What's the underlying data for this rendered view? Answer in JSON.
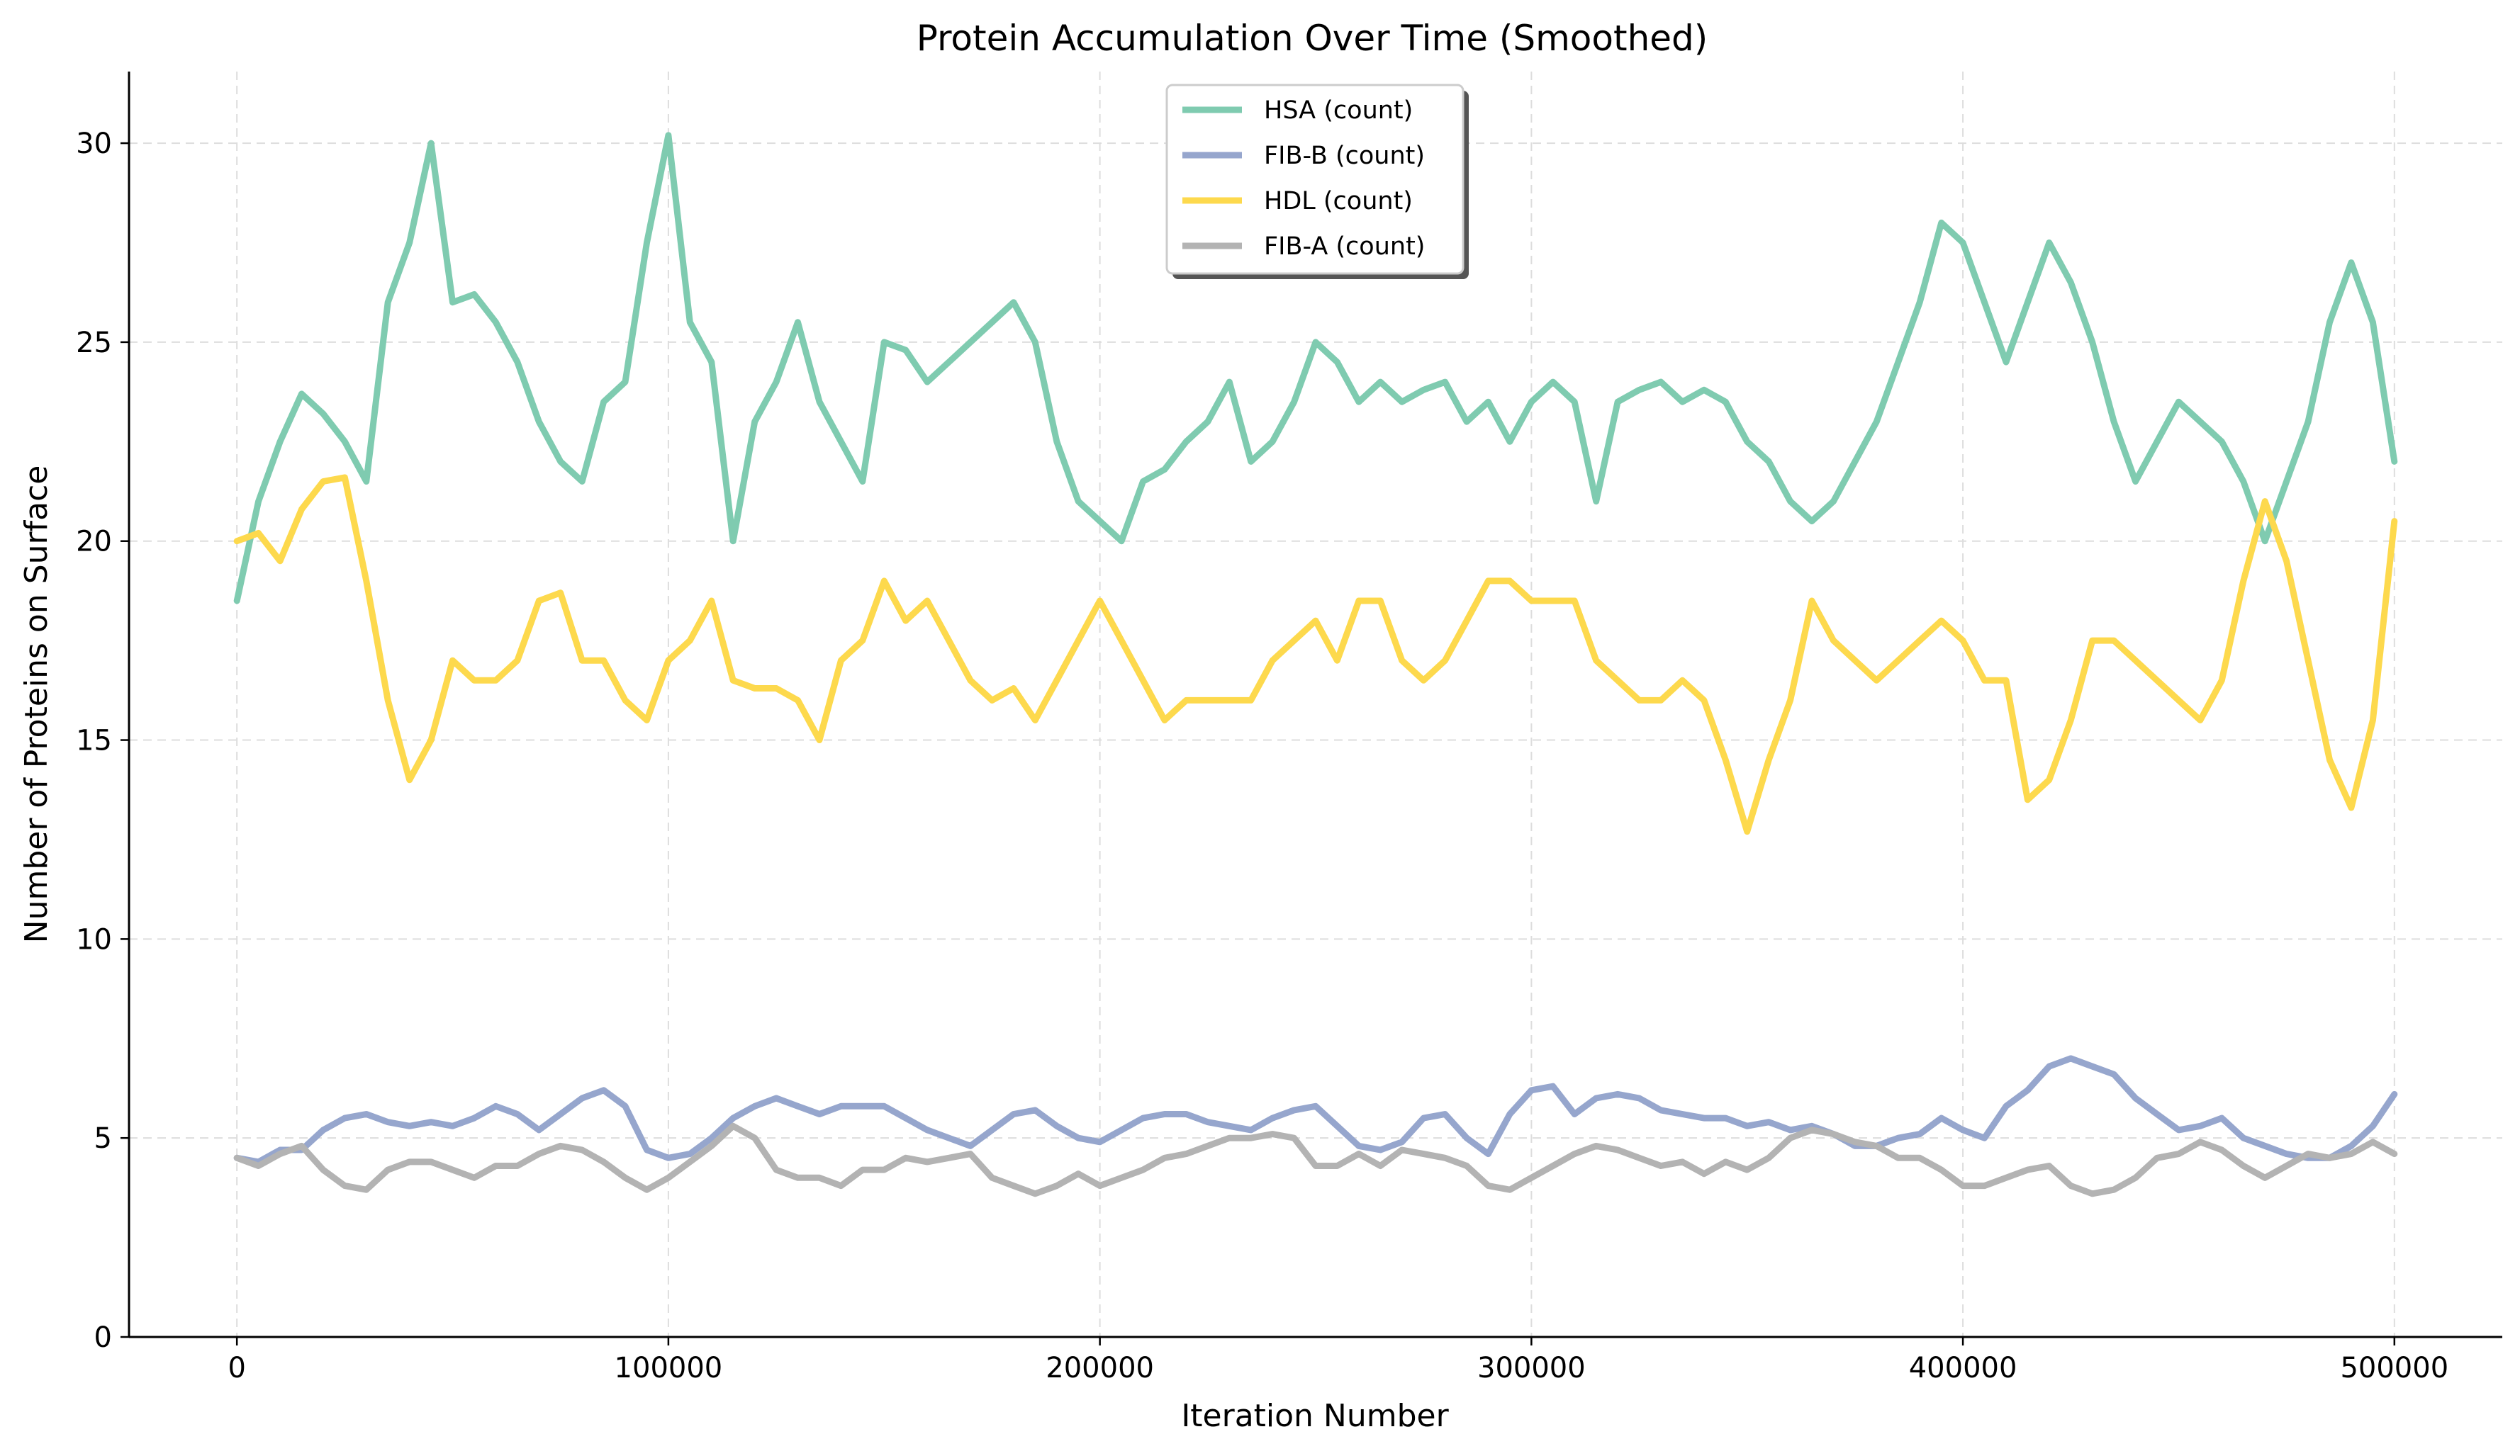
{
  "chart_data": {
    "type": "line",
    "title": "Protein Accumulation Over Time (Smoothed)",
    "xlabel": "Iteration Number",
    "ylabel": "Number of Proteins on Surface",
    "xlim": [
      -25000,
      525000
    ],
    "ylim": [
      0,
      31.8
    ],
    "x_ticks": [
      0,
      100000,
      200000,
      300000,
      400000,
      500000
    ],
    "y_ticks": [
      0,
      5,
      10,
      15,
      20,
      25,
      30
    ],
    "grid": true,
    "legend_position": "top-center",
    "x": [
      0,
      5000,
      10000,
      15000,
      20000,
      25000,
      30000,
      35000,
      40000,
      45000,
      50000,
      55000,
      60000,
      65000,
      70000,
      75000,
      80000,
      85000,
      90000,
      95000,
      100000,
      105000,
      110000,
      115000,
      120000,
      125000,
      130000,
      135000,
      140000,
      145000,
      150000,
      155000,
      160000,
      165000,
      170000,
      175000,
      180000,
      185000,
      190000,
      195000,
      200000,
      205000,
      210000,
      215000,
      220000,
      225000,
      230000,
      235000,
      240000,
      245000,
      250000,
      255000,
      260000,
      265000,
      270000,
      275000,
      280000,
      285000,
      290000,
      295000,
      300000,
      305000,
      310000,
      315000,
      320000,
      325000,
      330000,
      335000,
      340000,
      345000,
      350000,
      355000,
      360000,
      365000,
      370000,
      375000,
      380000,
      385000,
      390000,
      395000,
      400000,
      405000,
      410000,
      415000,
      420000,
      425000,
      430000,
      435000,
      440000,
      445000,
      450000,
      455000,
      460000,
      465000,
      470000,
      475000,
      480000,
      485000,
      490000,
      495000,
      500000
    ],
    "series": [
      {
        "name": "HSA (count)",
        "color": "#7fcbb0",
        "values": [
          18.5,
          21.0,
          22.5,
          23.7,
          23.2,
          22.5,
          21.5,
          26.0,
          27.5,
          30.0,
          26.0,
          26.2,
          25.5,
          24.5,
          23.0,
          22.0,
          21.5,
          23.5,
          24.0,
          27.5,
          30.2,
          25.5,
          24.5,
          20.0,
          23.0,
          24.0,
          25.5,
          23.5,
          22.5,
          21.5,
          25.0,
          24.8,
          24.0,
          24.5,
          25.0,
          25.5,
          26.0,
          25.0,
          22.5,
          21.0,
          20.5,
          20.0,
          21.5,
          21.8,
          22.5,
          23.0,
          24.0,
          22.0,
          22.5,
          23.5,
          25.0,
          24.5,
          23.5,
          24.0,
          23.5,
          23.8,
          24.0,
          23.0,
          23.5,
          22.5,
          23.5,
          24.0,
          23.5,
          21.0,
          23.5,
          23.8,
          24.0,
          23.5,
          23.8,
          23.5,
          22.5,
          22.0,
          21.0,
          20.5,
          21.0,
          22.0,
          23.0,
          24.5,
          26.0,
          28.0,
          27.5,
          26.0,
          24.5,
          26.0,
          27.5,
          26.5,
          25.0,
          23.0,
          21.5,
          22.5,
          23.5,
          23.0,
          22.5,
          21.5,
          20.0,
          21.5,
          23.0,
          25.5,
          27.0,
          25.5,
          22.0
        ]
      },
      {
        "name": "FIB-B (count)",
        "color": "#96a6cd",
        "values": [
          4.5,
          4.4,
          4.7,
          4.7,
          5.2,
          5.5,
          5.6,
          5.4,
          5.3,
          5.4,
          5.3,
          5.5,
          5.8,
          5.6,
          5.2,
          5.6,
          6.0,
          6.2,
          5.8,
          4.7,
          4.5,
          4.6,
          5.0,
          5.5,
          5.8,
          6.0,
          5.8,
          5.6,
          5.8,
          5.8,
          5.8,
          5.5,
          5.2,
          5.0,
          4.8,
          5.2,
          5.6,
          5.7,
          5.3,
          5.0,
          4.9,
          5.2,
          5.5,
          5.6,
          5.6,
          5.4,
          5.3,
          5.2,
          5.5,
          5.7,
          5.8,
          5.3,
          4.8,
          4.7,
          4.9,
          5.5,
          5.6,
          5.0,
          4.6,
          5.6,
          6.2,
          6.3,
          5.6,
          6.0,
          6.1,
          6.0,
          5.7,
          5.6,
          5.5,
          5.5,
          5.3,
          5.4,
          5.2,
          5.3,
          5.1,
          4.8,
          4.8,
          5.0,
          5.1,
          5.5,
          5.2,
          5.0,
          5.8,
          6.2,
          6.8,
          7.0,
          6.8,
          6.6,
          6.0,
          5.6,
          5.2,
          5.3,
          5.5,
          5.0,
          4.8,
          4.6,
          4.5,
          4.5,
          4.8,
          5.3,
          6.1
        ]
      },
      {
        "name": "HDL (count)",
        "color": "#fdd94d",
        "values": [
          20.0,
          20.2,
          19.5,
          20.8,
          21.5,
          21.6,
          19.0,
          16.0,
          14.0,
          15.0,
          17.0,
          16.5,
          16.5,
          17.0,
          18.5,
          18.7,
          17.0,
          17.0,
          16.0,
          15.5,
          17.0,
          17.5,
          18.5,
          16.5,
          16.3,
          16.3,
          16.0,
          15.0,
          17.0,
          17.5,
          19.0,
          18.0,
          18.5,
          17.5,
          16.5,
          16.0,
          16.3,
          15.5,
          16.5,
          17.5,
          18.5,
          17.5,
          16.5,
          15.5,
          16.0,
          16.0,
          16.0,
          16.0,
          17.0,
          17.5,
          18.0,
          17.0,
          18.5,
          18.5,
          17.0,
          16.5,
          17.0,
          18.0,
          19.0,
          19.0,
          18.5,
          18.5,
          18.5,
          17.0,
          16.5,
          16.0,
          16.0,
          16.5,
          16.0,
          14.5,
          12.7,
          14.5,
          16.0,
          18.5,
          17.5,
          17.0,
          16.5,
          17.0,
          17.5,
          18.0,
          17.5,
          16.5,
          16.5,
          13.5,
          14.0,
          15.5,
          17.5,
          17.5,
          17.0,
          16.5,
          16.0,
          15.5,
          16.5,
          19.0,
          21.0,
          19.5,
          17.0,
          14.5,
          13.3,
          15.5,
          20.5
        ]
      },
      {
        "name": "FIB-A (count)",
        "color": "#b3b3b3",
        "values": [
          4.5,
          4.3,
          4.6,
          4.8,
          4.2,
          3.8,
          3.7,
          4.2,
          4.4,
          4.4,
          4.2,
          4.0,
          4.3,
          4.3,
          4.6,
          4.8,
          4.7,
          4.4,
          4.0,
          3.7,
          4.0,
          4.4,
          4.8,
          5.3,
          5.0,
          4.2,
          4.0,
          4.0,
          3.8,
          4.2,
          4.2,
          4.5,
          4.4,
          4.5,
          4.6,
          4.0,
          3.8,
          3.6,
          3.8,
          4.1,
          3.8,
          4.0,
          4.2,
          4.5,
          4.6,
          4.8,
          5.0,
          5.0,
          5.1,
          5.0,
          4.3,
          4.3,
          4.6,
          4.3,
          4.7,
          4.6,
          4.5,
          4.3,
          3.8,
          3.7,
          4.0,
          4.3,
          4.6,
          4.8,
          4.7,
          4.5,
          4.3,
          4.4,
          4.1,
          4.4,
          4.2,
          4.5,
          5.0,
          5.2,
          5.1,
          4.9,
          4.8,
          4.5,
          4.5,
          4.2,
          3.8,
          3.8,
          4.0,
          4.2,
          4.3,
          3.8,
          3.6,
          3.7,
          4.0,
          4.5,
          4.6,
          4.9,
          4.7,
          4.3,
          4.0,
          4.3,
          4.6,
          4.5,
          4.6,
          4.9,
          4.6
        ]
      }
    ]
  }
}
